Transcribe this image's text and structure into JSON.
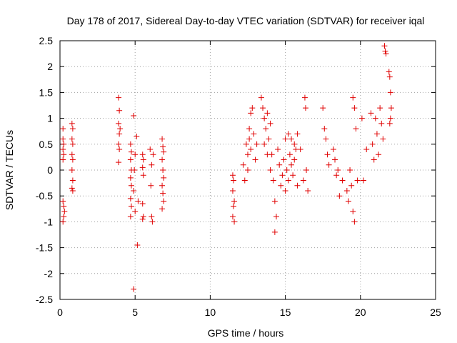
{
  "chart_data": {
    "type": "scatter",
    "title": "Day 178 of 2017, Sidereal Day-to-day VTEC variation (SDTVAR) for receiver iqal",
    "xlabel": "GPS time / hours",
    "ylabel": "SDTVAR / TECUs",
    "xlim": [
      0,
      25
    ],
    "ylim": [
      -2.5,
      2.5
    ],
    "xticks": [
      0,
      5,
      10,
      15,
      20,
      25
    ],
    "xtick_labels": [
      "0",
      "5",
      "10",
      "15",
      "20",
      "25"
    ],
    "yticks": [
      -2.5,
      -2,
      -1.5,
      -1,
      -0.5,
      0,
      0.5,
      1,
      1.5,
      2,
      2.5
    ],
    "ytick_labels": [
      "-2.5",
      "-2",
      "-1.5",
      "-1",
      "-0.5",
      "0",
      "0.5",
      "1",
      "1.5",
      "2",
      "2.5"
    ],
    "grid": true,
    "marker": "+",
    "marker_color": "#ff0000",
    "series": [
      {
        "name": "SDTVAR",
        "points": [
          [
            0.2,
            0.8
          ],
          [
            0.2,
            0.6
          ],
          [
            0.25,
            0.5
          ],
          [
            0.2,
            0.4
          ],
          [
            0.25,
            0.3
          ],
          [
            0.2,
            0.2
          ],
          [
            0.2,
            -0.6
          ],
          [
            0.25,
            -0.7
          ],
          [
            0.3,
            -0.8
          ],
          [
            0.25,
            -0.9
          ],
          [
            0.2,
            -1.0
          ],
          [
            0.8,
            0.9
          ],
          [
            0.85,
            0.8
          ],
          [
            0.8,
            0.6
          ],
          [
            0.85,
            0.5
          ],
          [
            0.8,
            0.3
          ],
          [
            0.85,
            0.2
          ],
          [
            0.8,
            0.0
          ],
          [
            0.85,
            -0.2
          ],
          [
            0.8,
            -0.35
          ],
          [
            0.85,
            -0.4
          ],
          [
            3.9,
            1.4
          ],
          [
            3.95,
            1.15
          ],
          [
            3.9,
            0.9
          ],
          [
            4.0,
            0.8
          ],
          [
            3.95,
            0.7
          ],
          [
            3.9,
            0.5
          ],
          [
            3.95,
            0.4
          ],
          [
            3.9,
            0.15
          ],
          [
            4.7,
            0.5
          ],
          [
            4.75,
            0.35
          ],
          [
            4.7,
            0.2
          ],
          [
            4.75,
            0.0
          ],
          [
            4.7,
            -0.15
          ],
          [
            4.75,
            -0.3
          ],
          [
            4.7,
            -0.55
          ],
          [
            4.75,
            -0.7
          ],
          [
            4.7,
            -0.9
          ],
          [
            4.9,
            1.05
          ],
          [
            5.0,
            0.3
          ],
          [
            4.95,
            0.0
          ],
          [
            4.9,
            -0.4
          ],
          [
            5.0,
            -0.8
          ],
          [
            4.9,
            -2.3
          ],
          [
            5.1,
            0.65
          ],
          [
            5.2,
            -0.6
          ],
          [
            5.15,
            -1.45
          ],
          [
            5.5,
            0.3
          ],
          [
            5.55,
            0.2
          ],
          [
            5.5,
            0.05
          ],
          [
            5.55,
            -0.1
          ],
          [
            5.5,
            -0.65
          ],
          [
            5.55,
            -0.9
          ],
          [
            5.5,
            -0.95
          ],
          [
            6.0,
            0.4
          ],
          [
            6.1,
            0.1
          ],
          [
            6.05,
            -0.3
          ],
          [
            6.1,
            -0.9
          ],
          [
            6.2,
            0.3
          ],
          [
            6.15,
            -1.0
          ],
          [
            6.8,
            0.6
          ],
          [
            6.85,
            0.45
          ],
          [
            6.9,
            0.35
          ],
          [
            6.8,
            0.2
          ],
          [
            6.85,
            0.0
          ],
          [
            6.9,
            -0.15
          ],
          [
            6.8,
            -0.3
          ],
          [
            6.85,
            -0.45
          ],
          [
            6.9,
            -0.6
          ],
          [
            6.8,
            -0.75
          ],
          [
            11.5,
            -0.1
          ],
          [
            11.55,
            -0.2
          ],
          [
            11.5,
            -0.4
          ],
          [
            11.6,
            -0.6
          ],
          [
            11.55,
            -0.7
          ],
          [
            11.5,
            -0.9
          ],
          [
            11.6,
            -1.0
          ],
          [
            12.2,
            0.1
          ],
          [
            12.3,
            -0.2
          ],
          [
            12.4,
            0.5
          ],
          [
            12.5,
            0.3
          ],
          [
            12.6,
            0.8
          ],
          [
            12.7,
            1.1
          ],
          [
            12.8,
            1.2
          ],
          [
            12.5,
            0.0
          ],
          [
            12.6,
            0.6
          ],
          [
            12.7,
            0.4
          ],
          [
            12.9,
            0.7
          ],
          [
            13.0,
            0.2
          ],
          [
            13.1,
            0.5
          ],
          [
            13.4,
            1.4
          ],
          [
            13.5,
            1.2
          ],
          [
            13.6,
            1.0
          ],
          [
            13.7,
            0.8
          ],
          [
            13.8,
            1.1
          ],
          [
            13.9,
            0.6
          ],
          [
            14.0,
            0.9
          ],
          [
            14.1,
            0.3
          ],
          [
            13.6,
            0.5
          ],
          [
            13.8,
            0.3
          ],
          [
            14.0,
            0.0
          ],
          [
            14.2,
            -0.2
          ],
          [
            14.3,
            -0.6
          ],
          [
            14.4,
            -0.9
          ],
          [
            14.3,
            -1.2
          ],
          [
            14.5,
            0.4
          ],
          [
            14.6,
            0.1
          ],
          [
            14.7,
            -0.3
          ],
          [
            14.8,
            -0.1
          ],
          [
            14.9,
            0.2
          ],
          [
            15.0,
            -0.4
          ],
          [
            15.1,
            0.0
          ],
          [
            15.2,
            -0.2
          ],
          [
            15.3,
            0.3
          ],
          [
            15.4,
            0.1
          ],
          [
            15.5,
            -0.1
          ],
          [
            15.6,
            0.2
          ],
          [
            15.7,
            0.4
          ],
          [
            15.8,
            -0.3
          ],
          [
            15.0,
            0.6
          ],
          [
            15.2,
            0.7
          ],
          [
            15.4,
            0.6
          ],
          [
            15.6,
            0.5
          ],
          [
            15.8,
            0.7
          ],
          [
            16.0,
            0.4
          ],
          [
            16.2,
            -0.2
          ],
          [
            16.3,
            1.4
          ],
          [
            16.35,
            1.2
          ],
          [
            16.4,
            0.0
          ],
          [
            16.5,
            -0.4
          ],
          [
            17.5,
            1.2
          ],
          [
            17.6,
            0.8
          ],
          [
            17.7,
            0.6
          ],
          [
            17.8,
            0.3
          ],
          [
            17.9,
            0.1
          ],
          [
            18.2,
            0.4
          ],
          [
            18.3,
            0.2
          ],
          [
            18.4,
            -0.1
          ],
          [
            18.5,
            0.0
          ],
          [
            18.6,
            -0.5
          ],
          [
            18.8,
            -0.2
          ],
          [
            19.1,
            -0.4
          ],
          [
            19.2,
            -0.6
          ],
          [
            19.3,
            0.0
          ],
          [
            19.4,
            -0.3
          ],
          [
            19.5,
            -0.8
          ],
          [
            19.6,
            -1.0
          ],
          [
            19.5,
            1.4
          ],
          [
            19.6,
            1.2
          ],
          [
            19.7,
            0.8
          ],
          [
            19.8,
            -0.2
          ],
          [
            20.1,
            1.0
          ],
          [
            20.2,
            -0.2
          ],
          [
            20.4,
            0.4
          ],
          [
            20.7,
            1.1
          ],
          [
            20.8,
            0.5
          ],
          [
            20.9,
            0.2
          ],
          [
            21.0,
            1.0
          ],
          [
            21.1,
            0.7
          ],
          [
            21.2,
            0.3
          ],
          [
            21.3,
            1.2
          ],
          [
            21.4,
            0.9
          ],
          [
            21.5,
            0.6
          ],
          [
            21.6,
            2.4
          ],
          [
            21.65,
            2.3
          ],
          [
            21.7,
            2.25
          ],
          [
            21.9,
            1.9
          ],
          [
            21.95,
            1.8
          ],
          [
            22.0,
            1.5
          ],
          [
            22.05,
            1.2
          ],
          [
            22.0,
            1.0
          ],
          [
            21.95,
            0.9
          ]
        ]
      }
    ]
  }
}
